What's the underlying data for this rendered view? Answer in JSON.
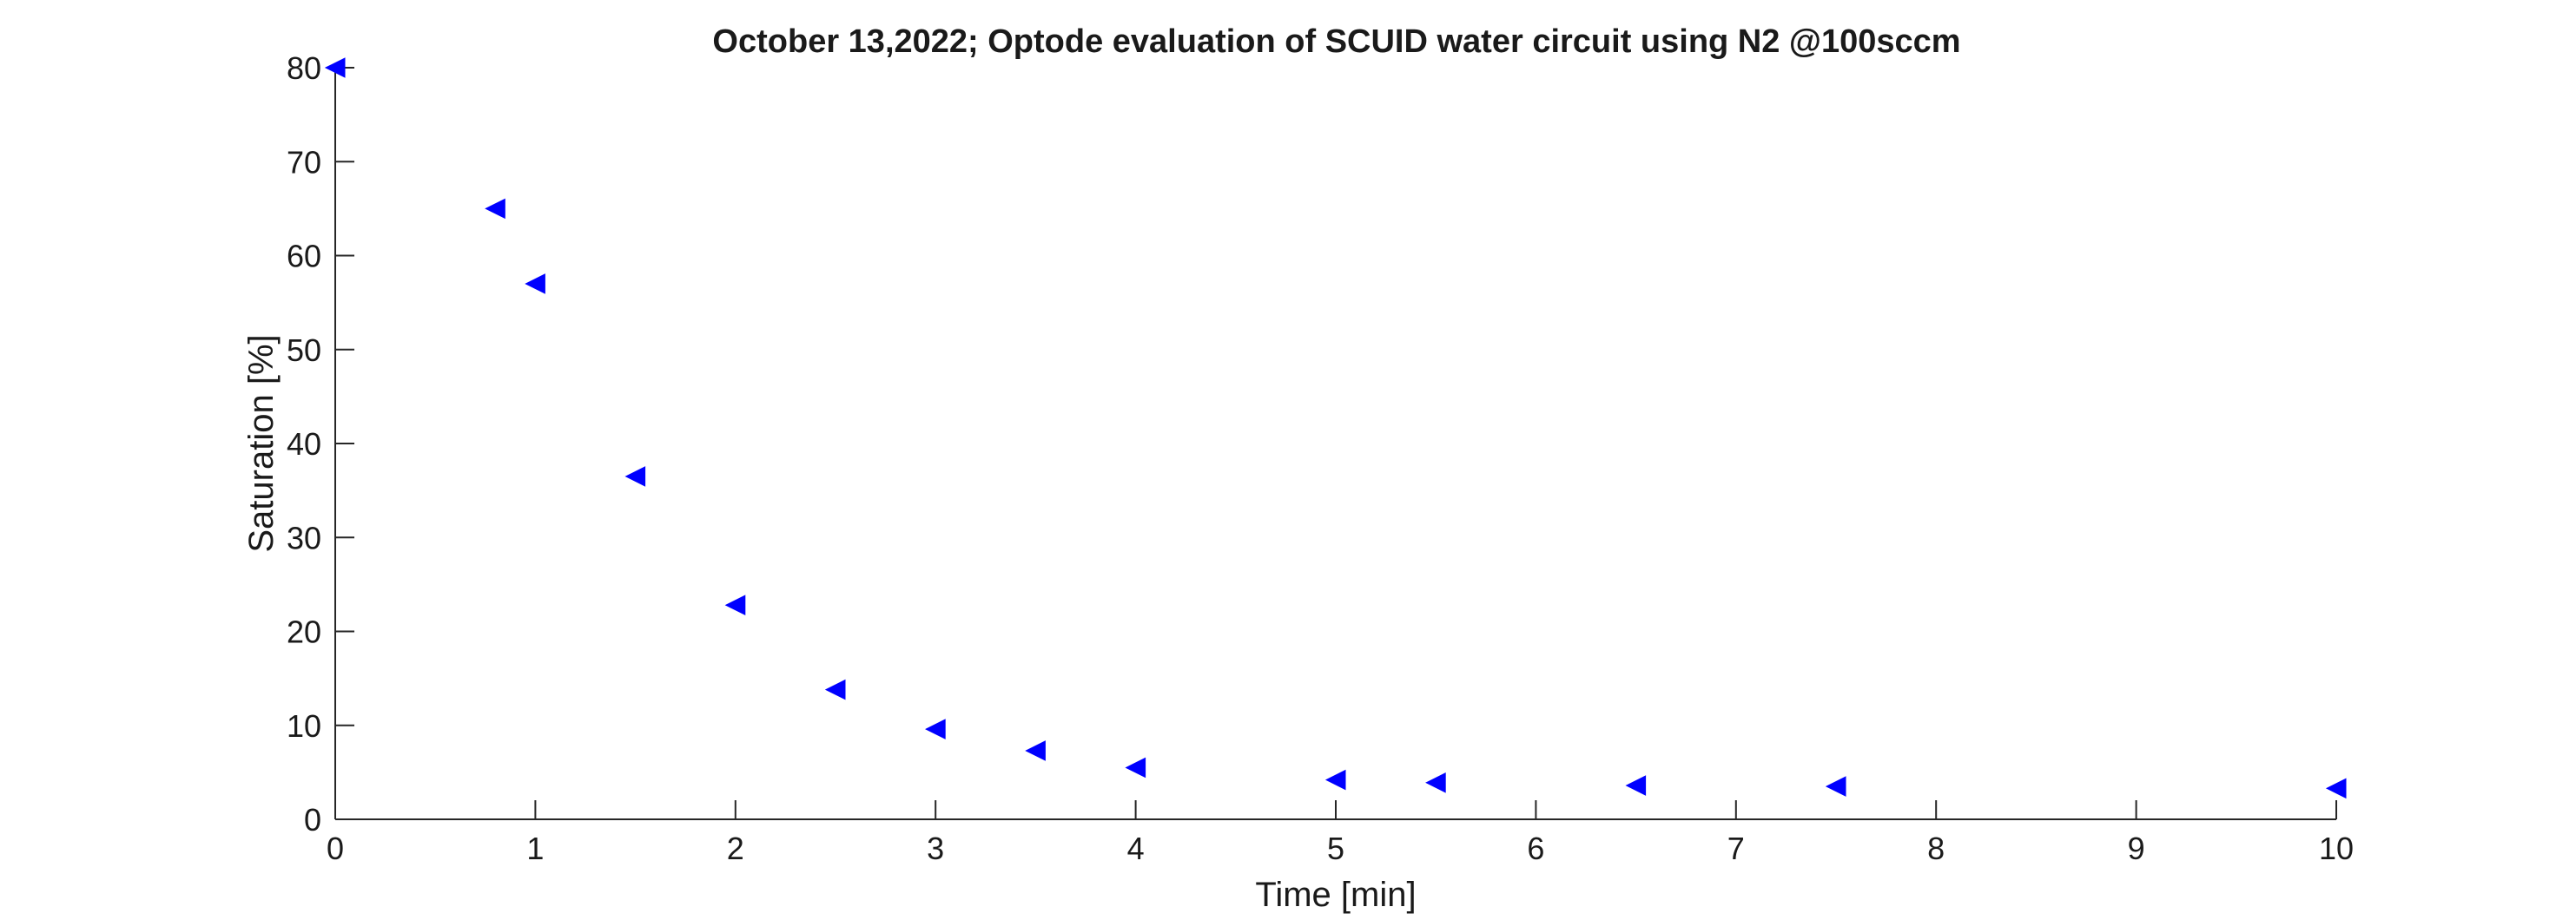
{
  "chart_data": {
    "type": "scatter",
    "title": "October 13,2022; Optode evaluation of SCUID water circuit using N2 @100sccm",
    "xlabel": "Time [min]",
    "ylabel": "Saturation [%]",
    "xlim": [
      0,
      10
    ],
    "ylim": [
      0,
      80
    ],
    "xticks": [
      "0",
      "1",
      "2",
      "3",
      "4",
      "5",
      "6",
      "7",
      "8",
      "9",
      "10"
    ],
    "yticks": [
      "0",
      "10",
      "20",
      "30",
      "40",
      "50",
      "60",
      "70",
      "80"
    ],
    "grid": false,
    "marker": "left-pointing-triangle",
    "marker_color": "#0000ff",
    "x": [
      0,
      0.8,
      1,
      1.5,
      2,
      2.5,
      3,
      3.5,
      4,
      5,
      5.5,
      6.5,
      7.5,
      10
    ],
    "y": [
      80,
      65,
      57,
      36.5,
      22.8,
      13.8,
      9.6,
      7.3,
      5.5,
      4.2,
      3.9,
      3.6,
      3.5,
      3.3
    ]
  }
}
